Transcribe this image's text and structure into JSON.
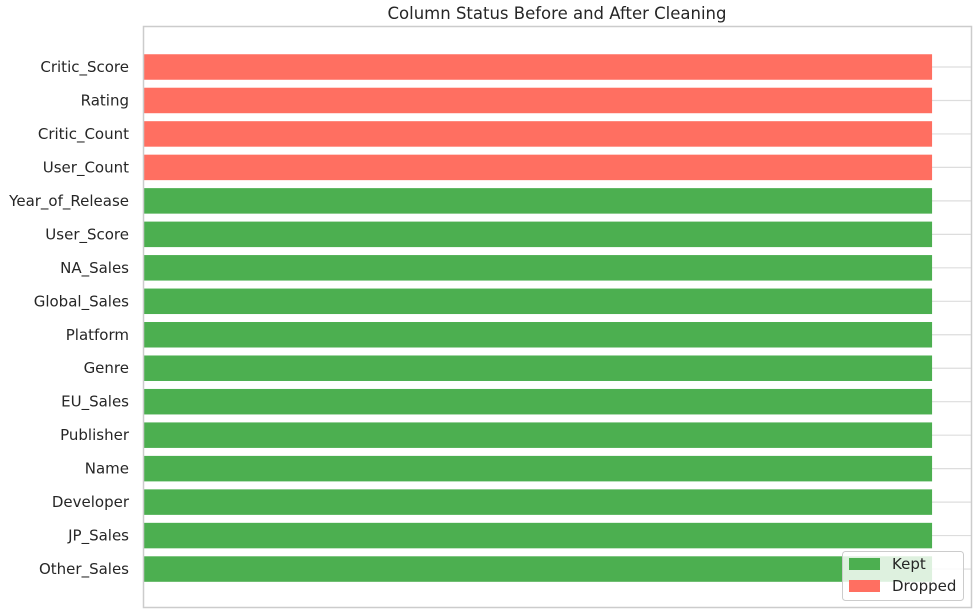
{
  "chart_data": {
    "type": "bar",
    "orientation": "horizontal",
    "title": "Column Status Before and After Cleaning",
    "xlabel": "",
    "ylabel": "",
    "xlim": [
      0,
      1.05
    ],
    "grid": true,
    "legend_position": "bottom-right",
    "categories": [
      "Critic_Score",
      "Rating",
      "Critic_Count",
      "User_Count",
      "Year_of_Release",
      "User_Score",
      "NA_Sales",
      "Global_Sales",
      "Platform",
      "Genre",
      "EU_Sales",
      "Publisher",
      "Name",
      "Developer",
      "JP_Sales",
      "Other_Sales"
    ],
    "values": [
      1,
      1,
      1,
      1,
      1,
      1,
      1,
      1,
      1,
      1,
      1,
      1,
      1,
      1,
      1,
      1
    ],
    "status": [
      "Dropped",
      "Dropped",
      "Dropped",
      "Dropped",
      "Kept",
      "Kept",
      "Kept",
      "Kept",
      "Kept",
      "Kept",
      "Kept",
      "Kept",
      "Kept",
      "Kept",
      "Kept",
      "Kept"
    ],
    "legend": [
      {
        "name": "Kept",
        "color": "#4caf50"
      },
      {
        "name": "Dropped",
        "color": "#ff6f61"
      }
    ]
  }
}
